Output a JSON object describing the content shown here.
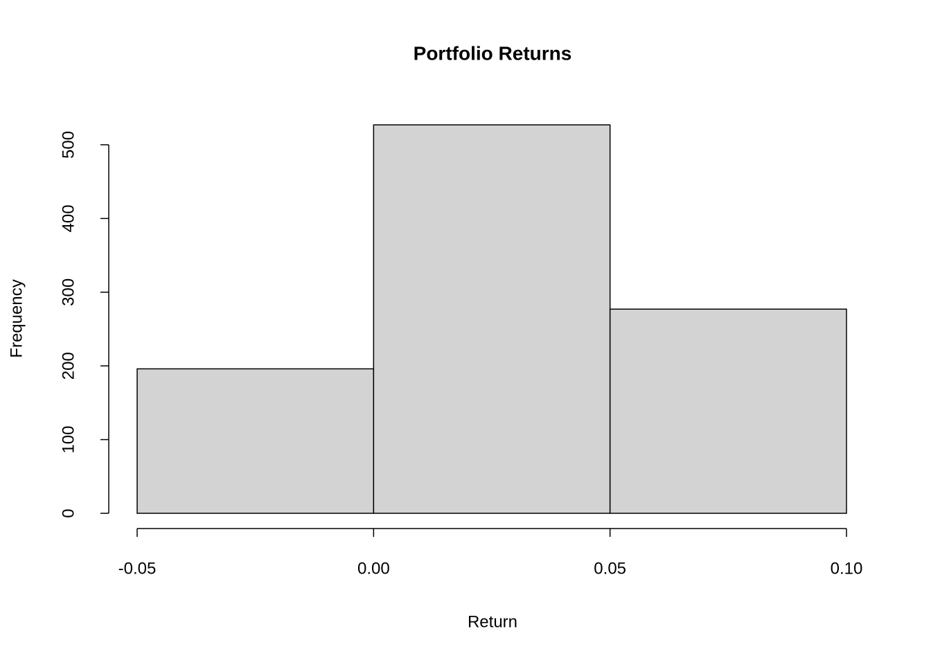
{
  "chart_data": {
    "type": "histogram",
    "title": "Portfolio Returns",
    "xlabel": "Return",
    "ylabel": "Frequency",
    "bins": [
      -0.05,
      0,
      0.05,
      0.1
    ],
    "values": [
      196,
      527,
      277
    ],
    "color": "#d3d3d3",
    "xlim": [
      -0.05,
      0.1
    ],
    "xticks": [
      -0.05,
      {
        "value": 0,
        "label": "0.00"
      },
      0.05,
      {
        "value": 0.1,
        "label": "0.10"
      }
    ],
    "ylim": [
      0,
      500
    ],
    "yticks": [
      0,
      100,
      200,
      300,
      400,
      500
    ]
  }
}
